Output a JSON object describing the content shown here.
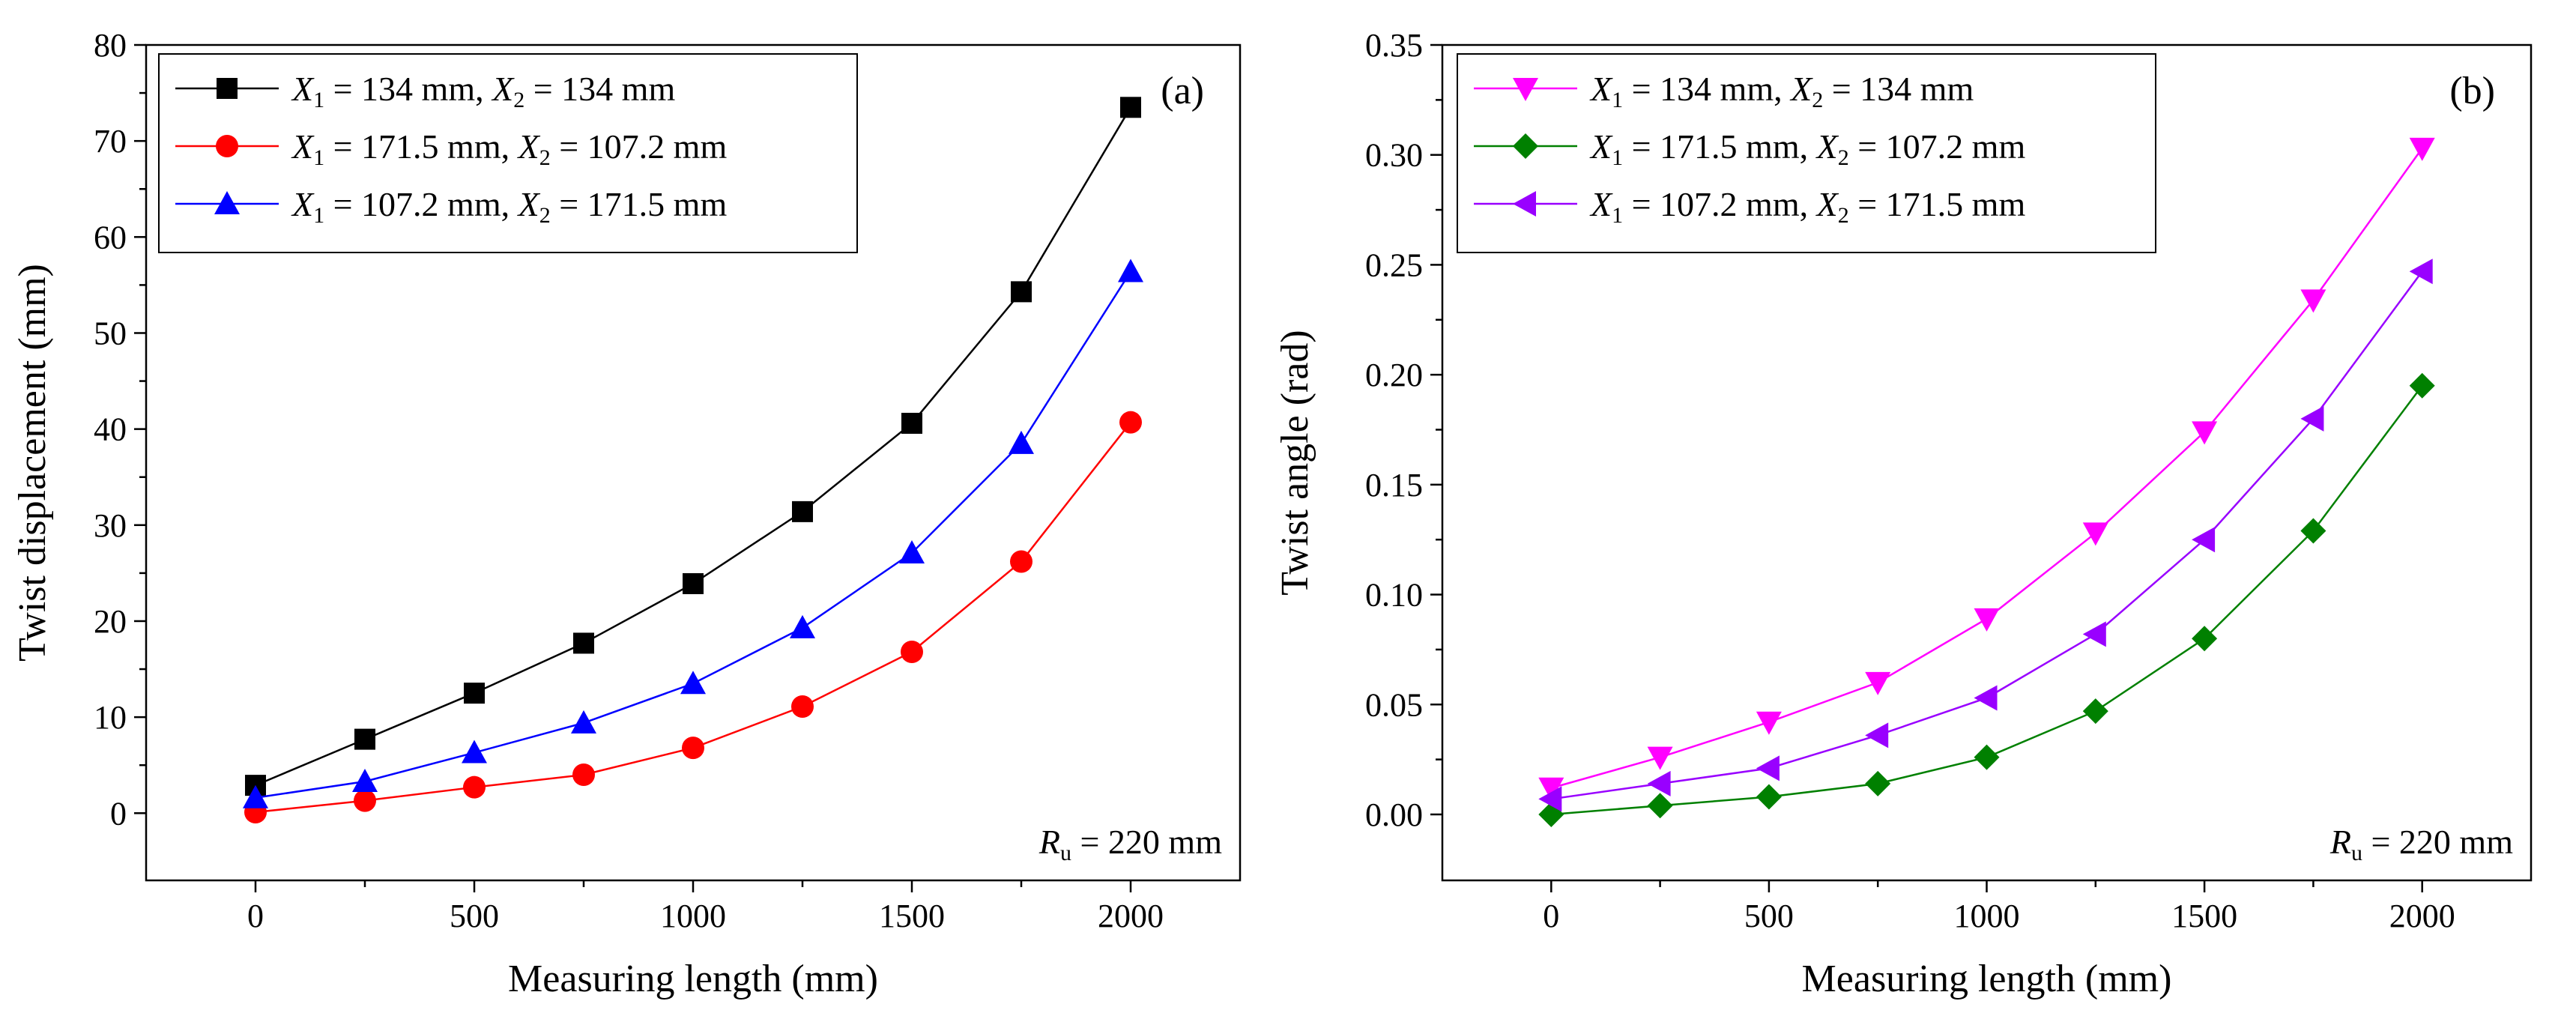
{
  "chart_data": [
    {
      "type": "line",
      "panel_label": "(a)",
      "xlabel": "Measuring length (mm)",
      "ylabel": "Twist displacement (mm)",
      "xlim": [
        -250,
        2250
      ],
      "ylim": [
        -7,
        80
      ],
      "xticks": [
        0,
        500,
        1000,
        1500,
        2000
      ],
      "xtick_labels": [
        "0",
        "500",
        "1000",
        "1500",
        "2000"
      ],
      "yticks": [
        0,
        10,
        20,
        30,
        40,
        50,
        60,
        70,
        80
      ],
      "ytick_labels": [
        "0",
        "10",
        "20",
        "30",
        "40",
        "50",
        "60",
        "70",
        "80"
      ],
      "x": [
        0,
        250,
        500,
        750,
        1000,
        1250,
        1500,
        1750,
        2000
      ],
      "legend_position": "top-left",
      "annotation": {
        "sym": "R",
        "sub": "u",
        "text": " = 220 mm"
      },
      "series": [
        {
          "sym1": "X",
          "sub1": "1",
          "val1": " = 134 mm,",
          "sym2": "X",
          "sub2": "2",
          "val2": " = 134 mm",
          "color": "#000000",
          "marker": "square",
          "values": [
            2.9,
            7.7,
            12.5,
            17.7,
            23.9,
            31.4,
            40.6,
            54.3,
            73.5
          ]
        },
        {
          "sym1": "X",
          "sub1": "1",
          "val1": " = 171.5 mm,",
          "sym2": "X",
          "sub2": "2",
          "val2": " = 107.2 mm",
          "color": "#ff0000",
          "marker": "circle",
          "values": [
            0.1,
            1.3,
            2.7,
            4.0,
            6.8,
            11.1,
            16.8,
            26.2,
            40.7
          ]
        },
        {
          "sym1": "X",
          "sub1": "1",
          "val1": " = 107.2 mm,",
          "sym2": "X",
          "sub2": "2",
          "val2": " = 171.5 mm",
          "color": "#0000ff",
          "marker": "triangle-up",
          "values": [
            1.6,
            3.3,
            6.3,
            9.4,
            13.5,
            19.3,
            27.1,
            38.5,
            56.4
          ]
        }
      ]
    },
    {
      "type": "line",
      "panel_label": "(b)",
      "xlabel": "Measuring length (mm)",
      "ylabel": "Twist angle (rad)",
      "xlim": [
        -250,
        2250
      ],
      "ylim": [
        -0.03,
        0.35
      ],
      "xticks": [
        0,
        500,
        1000,
        1500,
        2000
      ],
      "xtick_labels": [
        "0",
        "500",
        "1000",
        "1500",
        "2000"
      ],
      "yticks": [
        0.0,
        0.05,
        0.1,
        0.15,
        0.2,
        0.25,
        0.3,
        0.35
      ],
      "ytick_labels": [
        "0.00",
        "0.05",
        "0.10",
        "0.15",
        "0.20",
        "0.25",
        "0.30",
        "0.35"
      ],
      "x": [
        0,
        250,
        500,
        750,
        1000,
        1250,
        1500,
        1750,
        2000
      ],
      "legend_position": "top-left",
      "annotation": {
        "sym": "R",
        "sub": "u",
        "text": " = 220 mm"
      },
      "series": [
        {
          "sym1": "X",
          "sub1": "1",
          "val1": " = 134 mm,",
          "sym2": "X",
          "sub2": "2",
          "val2": " = 134 mm",
          "color": "#ff00ff",
          "marker": "triangle-down",
          "values": [
            0.012,
            0.026,
            0.042,
            0.06,
            0.089,
            0.128,
            0.174,
            0.234,
            0.303
          ]
        },
        {
          "sym1": "X",
          "sub1": "1",
          "val1": " = 171.5 mm,",
          "sym2": "X",
          "sub2": "2",
          "val2": " = 107.2 mm",
          "color": "#008000",
          "marker": "diamond",
          "values": [
            0.0,
            0.004,
            0.008,
            0.014,
            0.026,
            0.047,
            0.08,
            0.129,
            0.195
          ]
        },
        {
          "sym1": "X",
          "sub1": "1",
          "val1": " = 107.2 mm,",
          "sym2": "X",
          "sub2": "2",
          "val2": " = 171.5 mm",
          "color": "#9900ff",
          "marker": "triangle-left",
          "values": [
            0.007,
            0.014,
            0.021,
            0.036,
            0.053,
            0.082,
            0.125,
            0.18,
            0.247
          ]
        }
      ]
    }
  ]
}
